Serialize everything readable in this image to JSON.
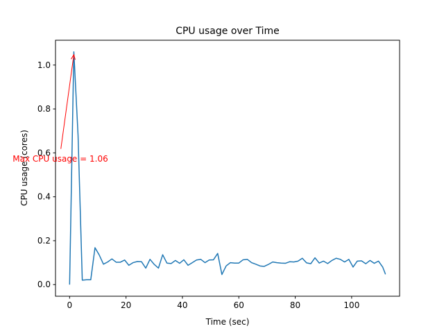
{
  "chart_data": {
    "type": "line",
    "title": "CPU usage over Time",
    "xlabel": "Time (sec)",
    "ylabel": "CPU usage (cores)",
    "xlim": [
      -5,
      117
    ],
    "ylim": [
      -0.053,
      1.113
    ],
    "xticks": [
      0,
      20,
      40,
      60,
      80,
      100
    ],
    "yticks": [
      0.0,
      0.2,
      0.4,
      0.6,
      0.8,
      1.0
    ],
    "xtick_labels": [
      "0",
      "20",
      "40",
      "60",
      "80",
      "100"
    ],
    "ytick_labels": [
      "0.0",
      "0.2",
      "0.4",
      "0.6",
      "0.8",
      "1.0"
    ],
    "grid": false,
    "series": [
      {
        "name": "CPU usage",
        "color": "#1f77b4",
        "x": [
          0,
          1.5,
          3,
          4.5,
          6,
          7.5,
          9,
          10.5,
          12,
          13.5,
          15,
          16.5,
          18,
          19.5,
          21,
          22.5,
          24,
          25.5,
          27,
          28.5,
          30,
          31.5,
          33,
          34.5,
          36,
          37.5,
          39,
          40.5,
          42,
          43.5,
          45,
          46.5,
          48,
          49.5,
          51,
          52.5,
          54,
          55.5,
          57,
          58.5,
          60,
          61.5,
          63,
          64.5,
          66,
          67.5,
          69,
          70.5,
          72,
          73.5,
          75,
          76.5,
          78,
          79.5,
          81,
          82.5,
          84,
          85.5,
          87,
          88.5,
          90,
          91.5,
          93,
          94.5,
          96,
          97.5,
          99,
          100.5,
          102,
          103.5,
          105,
          106.5,
          108,
          109.5,
          111,
          112
        ],
        "values": [
          0.0,
          1.06,
          0.68,
          0.02,
          0.022,
          0.022,
          0.168,
          0.135,
          0.093,
          0.103,
          0.117,
          0.102,
          0.102,
          0.112,
          0.088,
          0.1,
          0.105,
          0.104,
          0.075,
          0.115,
          0.092,
          0.075,
          0.136,
          0.098,
          0.096,
          0.11,
          0.097,
          0.113,
          0.088,
          0.1,
          0.112,
          0.115,
          0.1,
          0.112,
          0.113,
          0.142,
          0.046,
          0.085,
          0.1,
          0.098,
          0.098,
          0.113,
          0.115,
          0.1,
          0.093,
          0.085,
          0.083,
          0.092,
          0.103,
          0.1,
          0.098,
          0.097,
          0.104,
          0.103,
          0.107,
          0.12,
          0.099,
          0.095,
          0.122,
          0.098,
          0.107,
          0.096,
          0.11,
          0.12,
          0.115,
          0.103,
          0.115,
          0.08,
          0.107,
          0.108,
          0.095,
          0.11,
          0.097,
          0.107,
          0.08,
          0.047
        ]
      }
    ],
    "annotation": {
      "text": "Max CPU usage = 1.06",
      "color": "#ff0000",
      "point": [
        1.5,
        1.06
      ],
      "text_pos": [
        -3.1,
        0.555
      ]
    }
  }
}
